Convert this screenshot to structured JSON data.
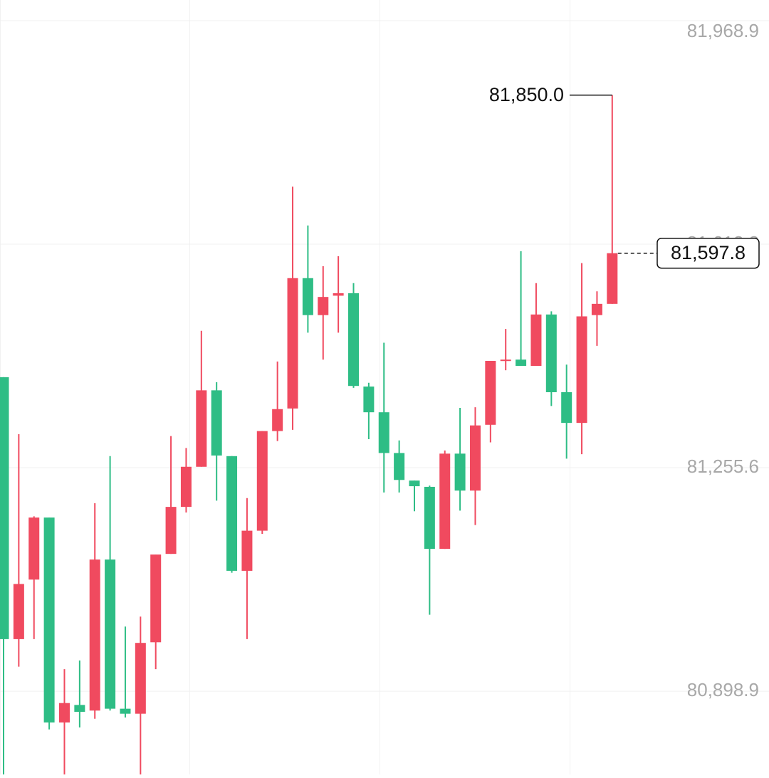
{
  "chart_data": {
    "type": "candlestick",
    "up_color": "#f04a5f",
    "down_color": "#2ebd85",
    "grid": true,
    "ylim": [
      80766.1,
      82001.8
    ],
    "yticks": [
      {
        "value": 80898.9,
        "label": "80,898.9"
      },
      {
        "value": 81255.6,
        "label": "81,255.6"
      },
      {
        "value": 81612.2,
        "label": "81,612.2"
      },
      {
        "value": 81968.9,
        "label": "81,968.9"
      }
    ],
    "open": [
      81400,
      80982,
      81077,
      81176,
      80849,
      80877,
      80868,
      81109,
      80871,
      80863,
      80977,
      81118,
      81193,
      81257,
      81379,
      81274,
      81091,
      81155,
      81314,
      81350,
      81558,
      81499,
      81530,
      81534,
      81385,
      81344,
      81279,
      81235,
      81225,
      81126,
      81278,
      81219,
      81324,
      81426,
      81428,
      81418,
      81500,
      81376,
      81327,
      81499,
      81517
    ],
    "close": [
      80982,
      81070,
      81176,
      80849,
      80880,
      80866,
      81109,
      80871,
      80863,
      80976,
      81117,
      81193,
      81257,
      81379,
      81275,
      81091,
      81155,
      81314,
      81349,
      81558,
      81499,
      81528,
      81534,
      81386,
      81344,
      81279,
      81236,
      81226,
      81126,
      81278,
      81219,
      81323,
      81426,
      81428,
      81418,
      81500,
      81376,
      81327,
      81497,
      81517,
      81597.8
    ],
    "high": [
      81400,
      81309,
      81178,
      81176,
      80934,
      80948,
      81199,
      81274,
      81002,
      81018,
      81117,
      81306,
      81287,
      81474,
      81392,
      81274,
      81207,
      81314,
      81425,
      81704,
      81642,
      81577,
      81593,
      81550,
      81391,
      81455,
      81299,
      81235,
      81227,
      81283,
      81351,
      81352,
      81426,
      81477,
      81601,
      81550,
      81505,
      81420,
      81582,
      81537,
      81850.0
    ],
    "low": [
      80766,
      80938,
      80982,
      80838,
      80766,
      80841,
      80855,
      80868,
      80857,
      80766,
      80934,
      81118,
      81184,
      81257,
      81203,
      81088,
      80982,
      81150,
      81298,
      81316,
      81471,
      81428,
      81471,
      81383,
      81301,
      81216,
      81216,
      81186,
      81021,
      81126,
      81187,
      81164,
      81296,
      81411,
      81418,
      81418,
      81354,
      81270,
      81277,
      81450,
      81517
    ],
    "annotations": [
      {
        "value": 81850.0,
        "label": "81,850.0"
      },
      {
        "value": 81597.8,
        "label": "81,597.8"
      }
    ]
  }
}
